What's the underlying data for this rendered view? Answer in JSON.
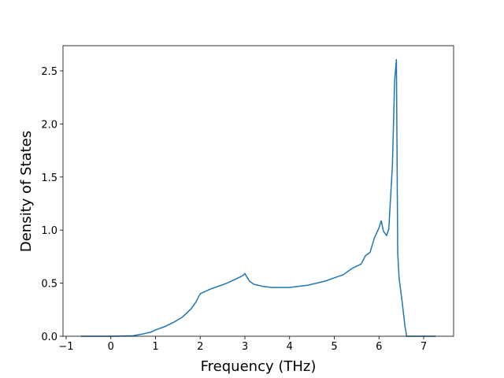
{
  "chart_data": {
    "type": "line",
    "xlabel": "Frequency (THz)",
    "ylabel": "Density of States",
    "x": [
      -0.67,
      0,
      0.5,
      0.7,
      0.9,
      1.0,
      1.2,
      1.4,
      1.6,
      1.8,
      1.9,
      2.0,
      2.2,
      2.4,
      2.6,
      2.8,
      2.95,
      3.0,
      3.1,
      3.2,
      3.4,
      3.6,
      3.8,
      4.0,
      4.2,
      4.4,
      4.6,
      4.8,
      5.0,
      5.2,
      5.4,
      5.6,
      5.7,
      5.8,
      5.9,
      6.0,
      6.05,
      6.1,
      6.17,
      6.22,
      6.3,
      6.35,
      6.39,
      6.42,
      6.45,
      6.52,
      6.58,
      6.62,
      7.0,
      7.27
    ],
    "series": [
      {
        "color": "#1f77b4",
        "values": [
          0,
          0,
          0.005,
          0.02,
          0.04,
          0.06,
          0.09,
          0.13,
          0.18,
          0.26,
          0.32,
          0.4,
          0.44,
          0.47,
          0.5,
          0.54,
          0.57,
          0.59,
          0.52,
          0.49,
          0.47,
          0.46,
          0.46,
          0.46,
          0.47,
          0.48,
          0.5,
          0.52,
          0.55,
          0.58,
          0.64,
          0.68,
          0.76,
          0.79,
          0.93,
          1.02,
          1.09,
          0.99,
          0.95,
          1.01,
          1.6,
          2.4,
          2.61,
          0.78,
          0.55,
          0.32,
          0.1,
          0,
          0,
          0
        ]
      }
    ],
    "xlim": [
      -1.07,
      7.67
    ],
    "ylim": [
      0,
      2.737
    ],
    "xticks": [
      {
        "value": -1,
        "label": "−1"
      },
      0,
      1,
      2,
      3,
      4,
      5,
      6,
      7
    ],
    "yticks": [
      {
        "value": 0,
        "label": "0.0"
      },
      {
        "value": 0.5,
        "label": "0.5"
      },
      {
        "value": 1,
        "label": "1.0"
      },
      {
        "value": 1.5,
        "label": "1.5"
      },
      {
        "value": 2,
        "label": "2.0"
      },
      {
        "value": 2.5,
        "label": "2.5"
      }
    ]
  }
}
